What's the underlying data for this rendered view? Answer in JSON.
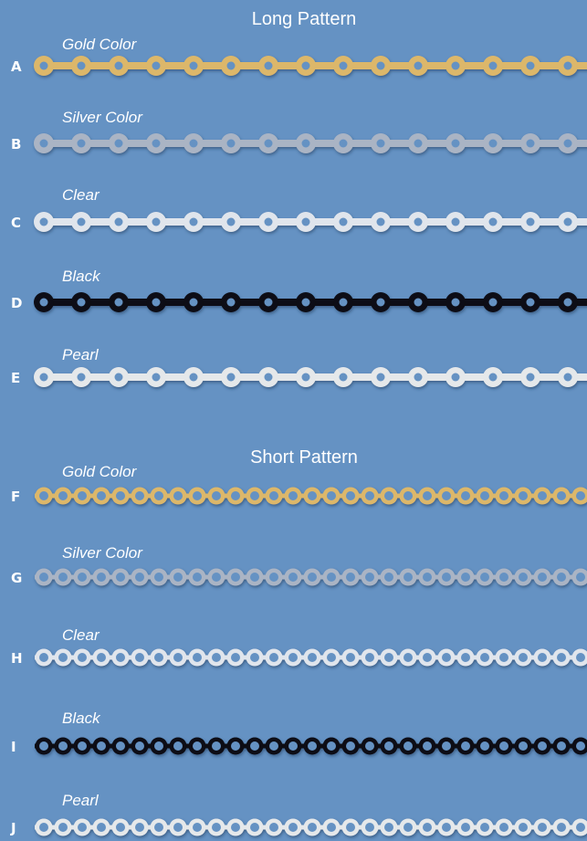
{
  "sections": [
    {
      "title": "Long Pattern",
      "items": [
        {
          "letter": "A",
          "label": "Gold Color"
        },
        {
          "letter": "B",
          "label": "Silver Color"
        },
        {
          "letter": "C",
          "label": "Clear"
        },
        {
          "letter": "D",
          "label": "Black"
        },
        {
          "letter": "E",
          "label": "Pearl"
        }
      ]
    },
    {
      "title": "Short Pattern",
      "items": [
        {
          "letter": "F",
          "label": "Gold Color"
        },
        {
          "letter": "G",
          "label": "Silver Color"
        },
        {
          "letter": "H",
          "label": "Clear"
        },
        {
          "letter": "I",
          "label": "Black"
        },
        {
          "letter": "J",
          "label": "Pearl"
        }
      ]
    }
  ]
}
